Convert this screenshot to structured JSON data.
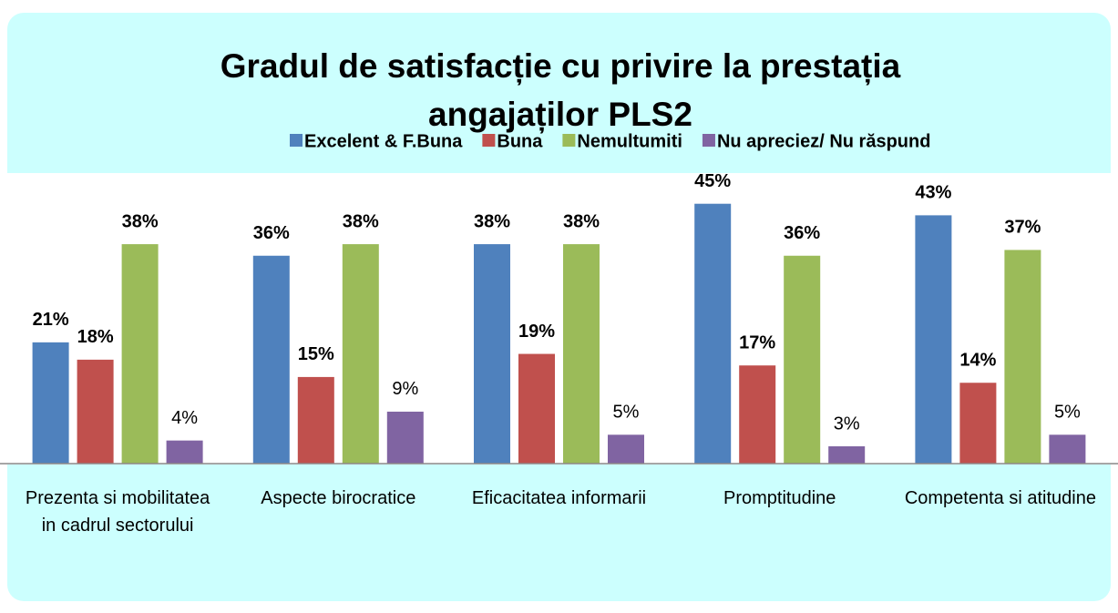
{
  "chart_data": {
    "type": "bar",
    "title": "Gradul de satisfacție cu privire la prestația angajaților PLS2",
    "categories": [
      "Prezenta si mobilitatea in cadrul sectorului",
      "Aspecte birocratice",
      "Eficacitatea informarii",
      "Promptitudine",
      "Competenta si atitudine"
    ],
    "series": [
      {
        "name": "Excelent & F.Buna",
        "color": "#4f81bd",
        "values": [
          21,
          36,
          38,
          45,
          43
        ],
        "value_labels": [
          "21%",
          "36%",
          "38%",
          "45%",
          "43%"
        ]
      },
      {
        "name": "Buna",
        "color": "#c0504d",
        "values": [
          18,
          15,
          19,
          17,
          14
        ],
        "value_labels": [
          "18%",
          "15%",
          "19%",
          "17%",
          "14%"
        ]
      },
      {
        "name": "Nemultumiti",
        "color": "#9bbb59",
        "values": [
          38,
          38,
          38,
          36,
          37
        ],
        "value_labels": [
          "38%",
          "38%",
          "38%",
          "36%",
          "37%"
        ]
      },
      {
        "name": "Nu apreciez/ Nu răspund",
        "color": "#8064a2",
        "values": [
          4,
          9,
          5,
          3,
          5
        ],
        "value_labels": [
          "4%",
          "9%",
          "5%",
          "3%",
          "5%"
        ]
      }
    ],
    "ylim": [
      0,
      50
    ],
    "legend": "top"
  }
}
